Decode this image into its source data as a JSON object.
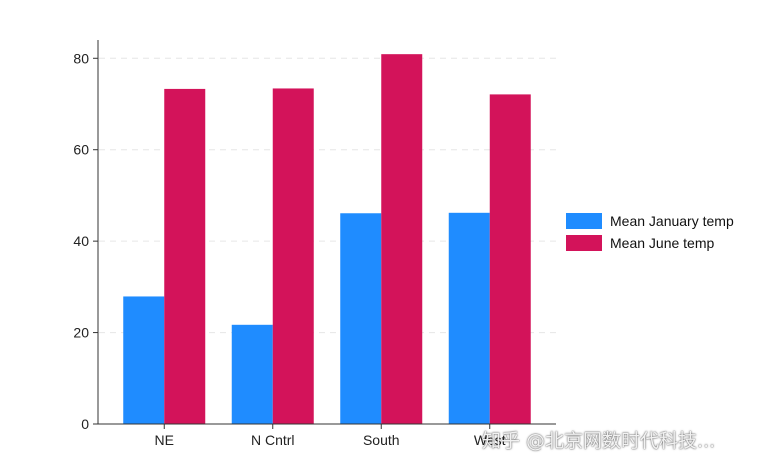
{
  "chart_data": {
    "type": "bar",
    "categories": [
      "NE",
      "N Cntrl",
      "South",
      "West"
    ],
    "series": [
      {
        "name": "Mean January temp",
        "values": [
          27.9,
          21.7,
          46.1,
          46.2
        ],
        "color": "#1f8cff"
      },
      {
        "name": "Mean June temp",
        "values": [
          73.3,
          73.4,
          80.9,
          72.1
        ],
        "color": "#d3135a"
      }
    ],
    "ylim": [
      0,
      84
    ],
    "yticks": [
      0,
      20,
      40,
      60,
      80
    ],
    "grid": true,
    "legend_position": "right",
    "title": "",
    "xlabel": "",
    "ylabel": ""
  },
  "watermark": "知乎 @北京网数时代科技..."
}
